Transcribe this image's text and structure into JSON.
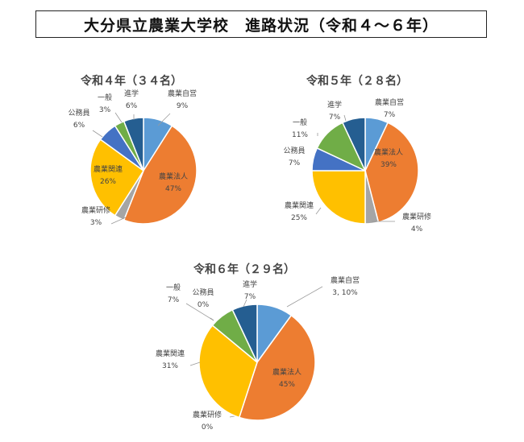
{
  "page": {
    "title": "大分県立農業大学校　進路状況（令和４～６年）"
  },
  "colors": {
    "農業自営": "#5B9BD5",
    "農業法人": "#ED7D31",
    "農業研修": "#A5A5A5",
    "農業関連": "#FFC000",
    "公務員": "#4472C4",
    "一般": "#70AD47",
    "進学": "#255E91"
  },
  "chart_data": [
    {
      "type": "pie",
      "title": "令和４年（３４名）",
      "slices": [
        {
          "category": "農業自営",
          "value_label": "9%",
          "value": 9
        },
        {
          "category": "農業法人",
          "value_label": "47%",
          "value": 47
        },
        {
          "category": "農業研修",
          "value_label": "3%",
          "value": 3
        },
        {
          "category": "農業関連",
          "value_label": "26%",
          "value": 26
        },
        {
          "category": "公務員",
          "value_label": "6%",
          "value": 6
        },
        {
          "category": "一般",
          "value_label": "3%",
          "value": 3
        },
        {
          "category": "進学",
          "value_label": "6%",
          "value": 6
        }
      ]
    },
    {
      "type": "pie",
      "title": "令和５年（２８名）",
      "slices": [
        {
          "category": "農業自営",
          "value_label": "7%",
          "value": 7
        },
        {
          "category": "農業法人",
          "value_label": "39%",
          "value": 39
        },
        {
          "category": "農業研修",
          "value_label": "4%",
          "value": 4
        },
        {
          "category": "農業関連",
          "value_label": "25%",
          "value": 25
        },
        {
          "category": "公務員",
          "value_label": "7%",
          "value": 7
        },
        {
          "category": "一般",
          "value_label": "11%",
          "value": 11
        },
        {
          "category": "進学",
          "value_label": "7%",
          "value": 7
        }
      ]
    },
    {
      "type": "pie",
      "title": "令和６年（２９名）",
      "slices": [
        {
          "category": "農業自営",
          "value_label": "3, 10%",
          "value": 10
        },
        {
          "category": "農業法人",
          "value_label": "45%",
          "value": 45
        },
        {
          "category": "農業研修",
          "value_label": "0%",
          "value": 0
        },
        {
          "category": "農業関連",
          "value_label": "31%",
          "value": 31
        },
        {
          "category": "公務員",
          "value_label": "0%",
          "value": 0
        },
        {
          "category": "一般",
          "value_label": "7%",
          "value": 7
        },
        {
          "category": "進学",
          "value_label": "7%",
          "value": 7
        }
      ]
    }
  ]
}
